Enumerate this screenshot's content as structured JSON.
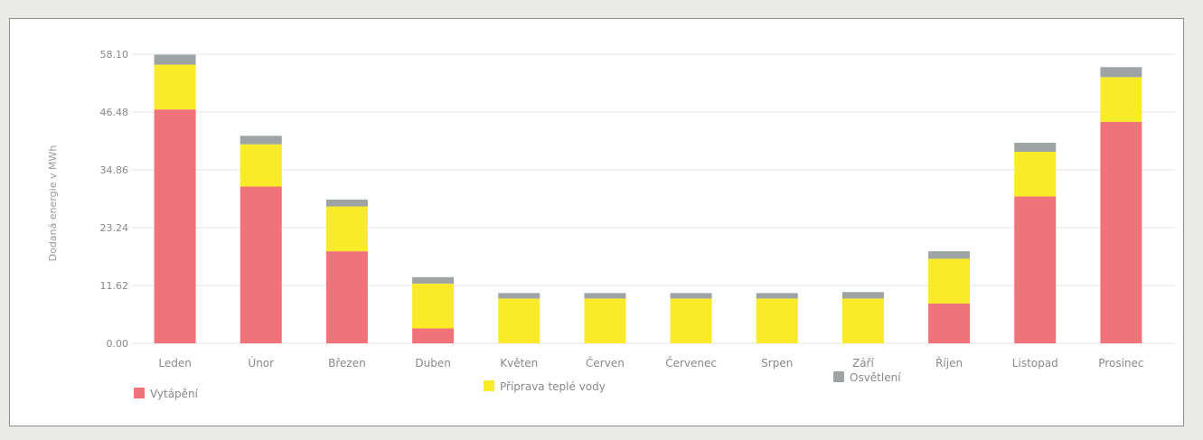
{
  "chart_data": {
    "type": "bar",
    "stacked": true,
    "ylabel": "Dodaná energie v MWh",
    "xlabel": "",
    "ylim": [
      0,
      58.1
    ],
    "yticks": [
      "0.00",
      "11.62",
      "23.24",
      "34.86",
      "46.48",
      "58.10"
    ],
    "categories": [
      "Leden",
      "Únor",
      "Březen",
      "Duben",
      "Květen",
      "Červen",
      "Červenec",
      "Srpen",
      "Září",
      "Říjen",
      "Listopad",
      "Prosinec"
    ],
    "series": [
      {
        "name": "Vytápění",
        "color": "#f0737a",
        "values": [
          47.0,
          31.5,
          18.5,
          3.0,
          0,
          0,
          0,
          0,
          0,
          8.0,
          29.5,
          44.5
        ]
      },
      {
        "name": "Příprava teplé vody",
        "color": "#f9ea2a",
        "values": [
          9.0,
          8.5,
          9.0,
          9.0,
          9.0,
          9.0,
          9.0,
          9.0,
          9.0,
          9.0,
          9.0,
          9.0
        ]
      },
      {
        "name": "Osvětlení",
        "color": "#9ea3a3",
        "values": [
          2.0,
          1.7,
          1.4,
          1.3,
          1.1,
          1.1,
          1.1,
          1.1,
          1.3,
          1.5,
          1.8,
          2.0
        ]
      }
    ],
    "grid": true,
    "legend": "bottom"
  }
}
